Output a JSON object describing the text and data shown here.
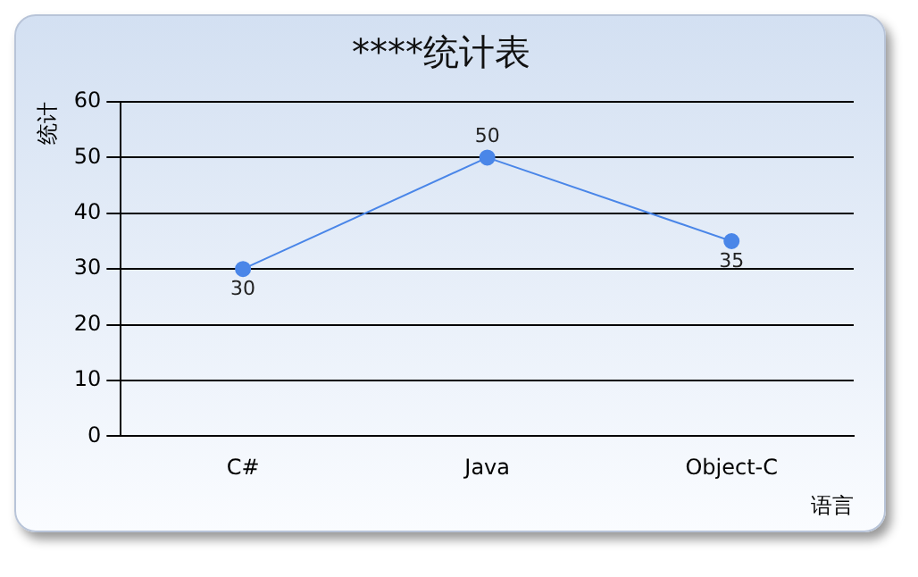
{
  "chart_data": {
    "type": "line",
    "title": "****统计表",
    "xlabel": "语言",
    "ylabel": "统计",
    "categories": [
      "C#",
      "Java",
      "Object-C"
    ],
    "series": [
      {
        "color": "#4a86e8",
        "values": [
          30,
          50,
          35
        ]
      }
    ],
    "ylim": [
      0,
      60
    ],
    "yticks": [
      0,
      10,
      20,
      30,
      40,
      50,
      60
    ],
    "grid": "y",
    "marker": "circle",
    "line_style": "solid",
    "data_labels": true,
    "legend": false
  }
}
